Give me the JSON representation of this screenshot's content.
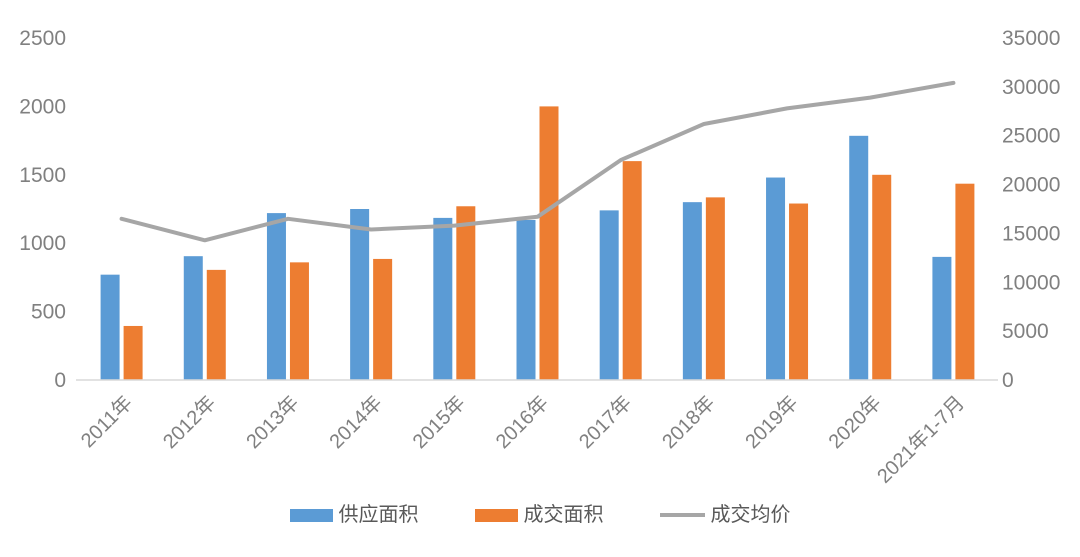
{
  "chart_data": {
    "type": "bar",
    "subtype": "grouped-bars-with-line-combo",
    "title": "",
    "categories": [
      "2011年",
      "2012年",
      "2013年",
      "2014年",
      "2015年",
      "2016年",
      "2017年",
      "2018年",
      "2019年",
      "2020年",
      "2021年1-7月"
    ],
    "series": [
      {
        "name": "供应面积",
        "type": "bar",
        "axis": "left",
        "color": "#5B9BD5",
        "values": [
          770,
          905,
          1220,
          1250,
          1185,
          1170,
          1240,
          1300,
          1480,
          1785,
          900
        ]
      },
      {
        "name": "成交面积",
        "type": "bar",
        "axis": "left",
        "color": "#ED7D31",
        "values": [
          395,
          805,
          860,
          885,
          1270,
          2000,
          1600,
          1335,
          1290,
          1500,
          1435
        ]
      },
      {
        "name": "成交均价",
        "type": "line",
        "axis": "right",
        "color": "#A6A6A6",
        "values": [
          16500,
          14300,
          16500,
          15400,
          15800,
          16700,
          22500,
          26200,
          27800,
          28900,
          30400
        ]
      }
    ],
    "left_axis": {
      "min": 0,
      "max": 2500,
      "ticks": [
        0,
        500,
        1000,
        1500,
        2000,
        2500
      ]
    },
    "right_axis": {
      "min": 0,
      "max": 35000,
      "ticks": [
        0,
        5000,
        10000,
        15000,
        20000,
        25000,
        30000,
        35000
      ]
    },
    "xlabel": "",
    "ylabel": "",
    "grid": false,
    "legend_position": "bottom",
    "x_label_rotation_deg": -45
  },
  "style": {
    "axis_label_color": "#808080",
    "axis_line_color": "#D9D9D9",
    "legend_text_color": "#595959",
    "background": "#FFFFFF"
  }
}
